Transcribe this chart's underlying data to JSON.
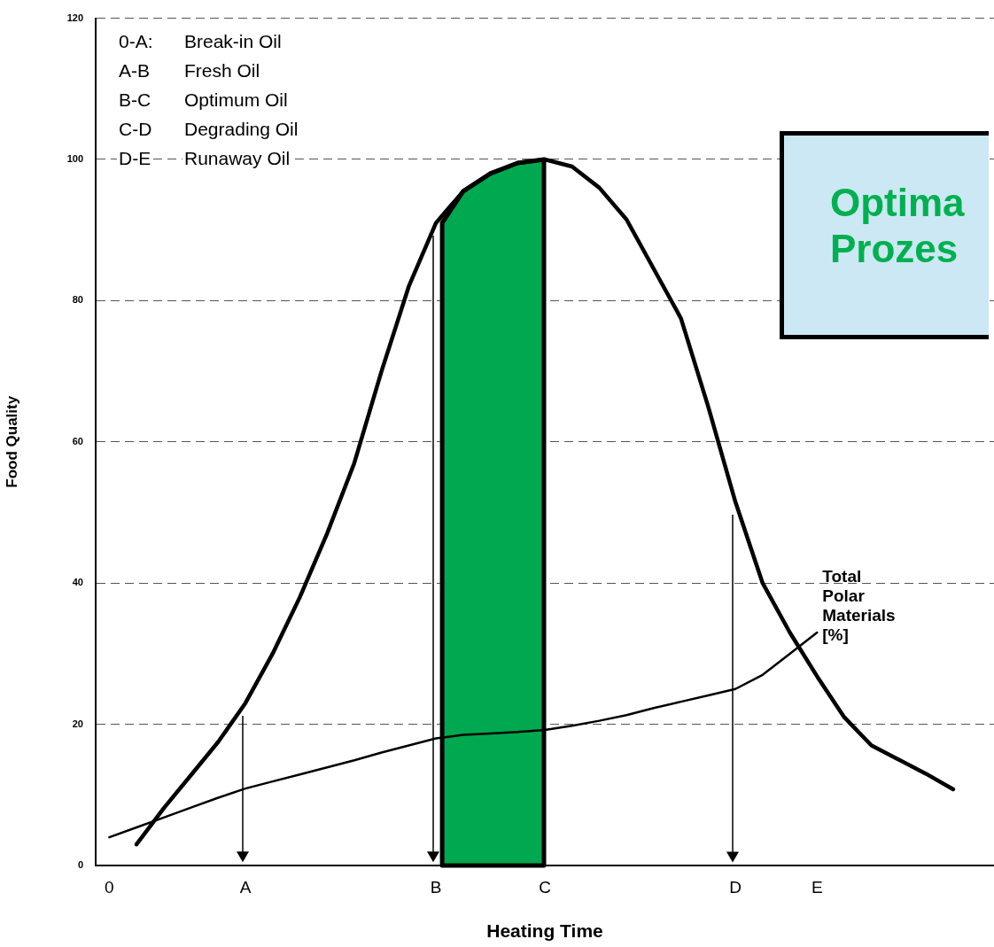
{
  "chart_data": {
    "type": "line",
    "xlabel": "Heating Time",
    "ylabel": "Food Quality",
    "categories": [
      "0",
      null,
      null,
      null,
      null,
      "A",
      null,
      null,
      null,
      null,
      null,
      null,
      "B",
      null,
      null,
      null,
      "C",
      null,
      null,
      null,
      null,
      null,
      null,
      "D",
      null,
      null,
      "E",
      null,
      null,
      null,
      null,
      null,
      null
    ],
    "ylim": [
      0,
      120
    ],
    "yticks": [
      0,
      20,
      40,
      60,
      80,
      100,
      120
    ],
    "series": [
      {
        "color": "#000000",
        "values": [
          null,
          3,
          8.1,
          12.8,
          17.5,
          23,
          30,
          38,
          47,
          57,
          70,
          82,
          91,
          95.5,
          98,
          99.5,
          100,
          99,
          96,
          91.5,
          84.5,
          77.5,
          65,
          51.5,
          40,
          33,
          26.8,
          21,
          17,
          15,
          13,
          10.8,
          null
        ]
      },
      {
        "name": "Total Polar Materials [%]",
        "color": "#000000",
        "values": [
          4,
          5.4,
          6.8,
          8.2,
          9.6,
          10.9,
          11.9,
          12.9,
          13.9,
          14.9,
          16,
          17,
          18,
          18.5,
          18.7,
          18.9,
          19.2,
          19.8,
          20.5,
          21.3,
          22.3,
          23.2,
          24.1,
          25,
          27,
          30,
          33,
          null,
          null,
          null,
          null,
          null,
          null
        ]
      }
    ],
    "bands": [
      {
        "axis": "x",
        "from": "B",
        "to": "C",
        "color": "#00a84f"
      }
    ],
    "ref_lines": [
      {
        "axis": "x",
        "value": "A"
      },
      {
        "axis": "x",
        "value": "B"
      },
      {
        "axis": "x",
        "value": "D"
      }
    ],
    "annotations": [
      "0-A:   Break-in Oil",
      "A-B    Fresh Oil",
      "B-C    Optimum Oil",
      "C-D    Degrading Oil",
      "D-E    Runaway Oil",
      "Optima",
      "Prozes"
    ],
    "grid": "y",
    "legend": false,
    "marker": "none",
    "line_style": "solid"
  }
}
